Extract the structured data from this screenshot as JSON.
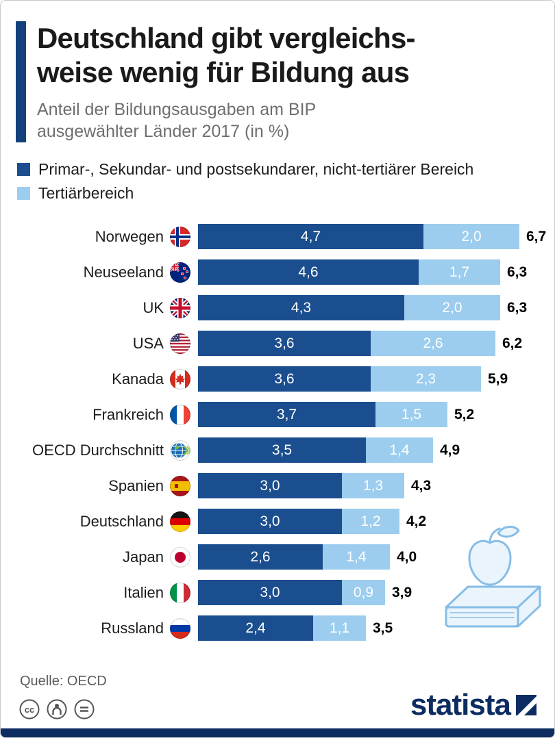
{
  "header": {
    "title_line1": "Deutschland gibt vergleichs-",
    "title_line2": "weise wenig für Bildung aus",
    "subtitle_line1": "Anteil der Bildungsausgaben am BIP",
    "subtitle_line2": "ausgewählter Länder 2017 (in %)"
  },
  "legend": {
    "items": [
      {
        "label": "Primar-, Sekundar- und postsekundarer, nicht-tertiärer Bereich",
        "color": "#1b4e8f"
      },
      {
        "label": "Tertiärbereich",
        "color": "#9ccdee"
      }
    ]
  },
  "chart_data": {
    "type": "bar",
    "orientation": "horizontal",
    "stacked": true,
    "title": "Deutschland gibt vergleichsweise wenig für Bildung aus",
    "subtitle": "Anteil der Bildungsausgaben am BIP ausgewählter Länder 2017 (in %)",
    "unit": "% des BIP",
    "xlim": [
      0,
      6.7
    ],
    "series_names": [
      "Primar-, Sekundar- und postsekundarer, nicht-tertiärer Bereich",
      "Tertiärbereich"
    ],
    "rows": [
      {
        "country": "Norwegen",
        "flag": "norway",
        "primary": 4.7,
        "tertiary": 2.0,
        "total": 6.7,
        "primary_label": "4,7",
        "tertiary_label": "2,0",
        "total_label": "6,7"
      },
      {
        "country": "Neuseeland",
        "flag": "newzealand",
        "primary": 4.6,
        "tertiary": 1.7,
        "total": 6.3,
        "primary_label": "4,6",
        "tertiary_label": "1,7",
        "total_label": "6,3"
      },
      {
        "country": "UK",
        "flag": "uk",
        "primary": 4.3,
        "tertiary": 2.0,
        "total": 6.3,
        "primary_label": "4,3",
        "tertiary_label": "2,0",
        "total_label": "6,3"
      },
      {
        "country": "USA",
        "flag": "usa",
        "primary": 3.6,
        "tertiary": 2.6,
        "total": 6.2,
        "primary_label": "3,6",
        "tertiary_label": "2,6",
        "total_label": "6,2"
      },
      {
        "country": "Kanada",
        "flag": "canada",
        "primary": 3.6,
        "tertiary": 2.3,
        "total": 5.9,
        "primary_label": "3,6",
        "tertiary_label": "2,3",
        "total_label": "5,9"
      },
      {
        "country": "Frankreich",
        "flag": "france",
        "primary": 3.7,
        "tertiary": 1.5,
        "total": 5.2,
        "primary_label": "3,7",
        "tertiary_label": "1,5",
        "total_label": "5,2"
      },
      {
        "country": "OECD Durchschnitt",
        "flag": "oecd",
        "primary": 3.5,
        "tertiary": 1.4,
        "total": 4.9,
        "primary_label": "3,5",
        "tertiary_label": "1,4",
        "total_label": "4,9"
      },
      {
        "country": "Spanien",
        "flag": "spain",
        "primary": 3.0,
        "tertiary": 1.3,
        "total": 4.3,
        "primary_label": "3,0",
        "tertiary_label": "1,3",
        "total_label": "4,3"
      },
      {
        "country": "Deutschland",
        "flag": "germany",
        "primary": 3.0,
        "tertiary": 1.2,
        "total": 4.2,
        "primary_label": "3,0",
        "tertiary_label": "1,2",
        "total_label": "4,2"
      },
      {
        "country": "Japan",
        "flag": "japan",
        "primary": 2.6,
        "tertiary": 1.4,
        "total": 4.0,
        "primary_label": "2,6",
        "tertiary_label": "1,4",
        "total_label": "4,0"
      },
      {
        "country": "Italien",
        "flag": "italy",
        "primary": 3.0,
        "tertiary": 0.9,
        "total": 3.9,
        "primary_label": "3,0",
        "tertiary_label": "0,9",
        "total_label": "3,9"
      },
      {
        "country": "Russland",
        "flag": "russia",
        "primary": 2.4,
        "tertiary": 1.1,
        "total": 3.5,
        "primary_label": "2,4",
        "tertiary_label": "1,1",
        "total_label": "3,5"
      }
    ]
  },
  "colors": {
    "primary_bar": "#1b4e8f",
    "secondary_bar": "#9ccdee",
    "accent": "#14407c",
    "footer_bar": "#0d2d62",
    "brand": "#0d2d62"
  },
  "footer": {
    "source": "Quelle: OECD",
    "brand": "statista",
    "license_icons": [
      "cc-icon",
      "attribution-icon",
      "no-derivatives-icon"
    ]
  }
}
